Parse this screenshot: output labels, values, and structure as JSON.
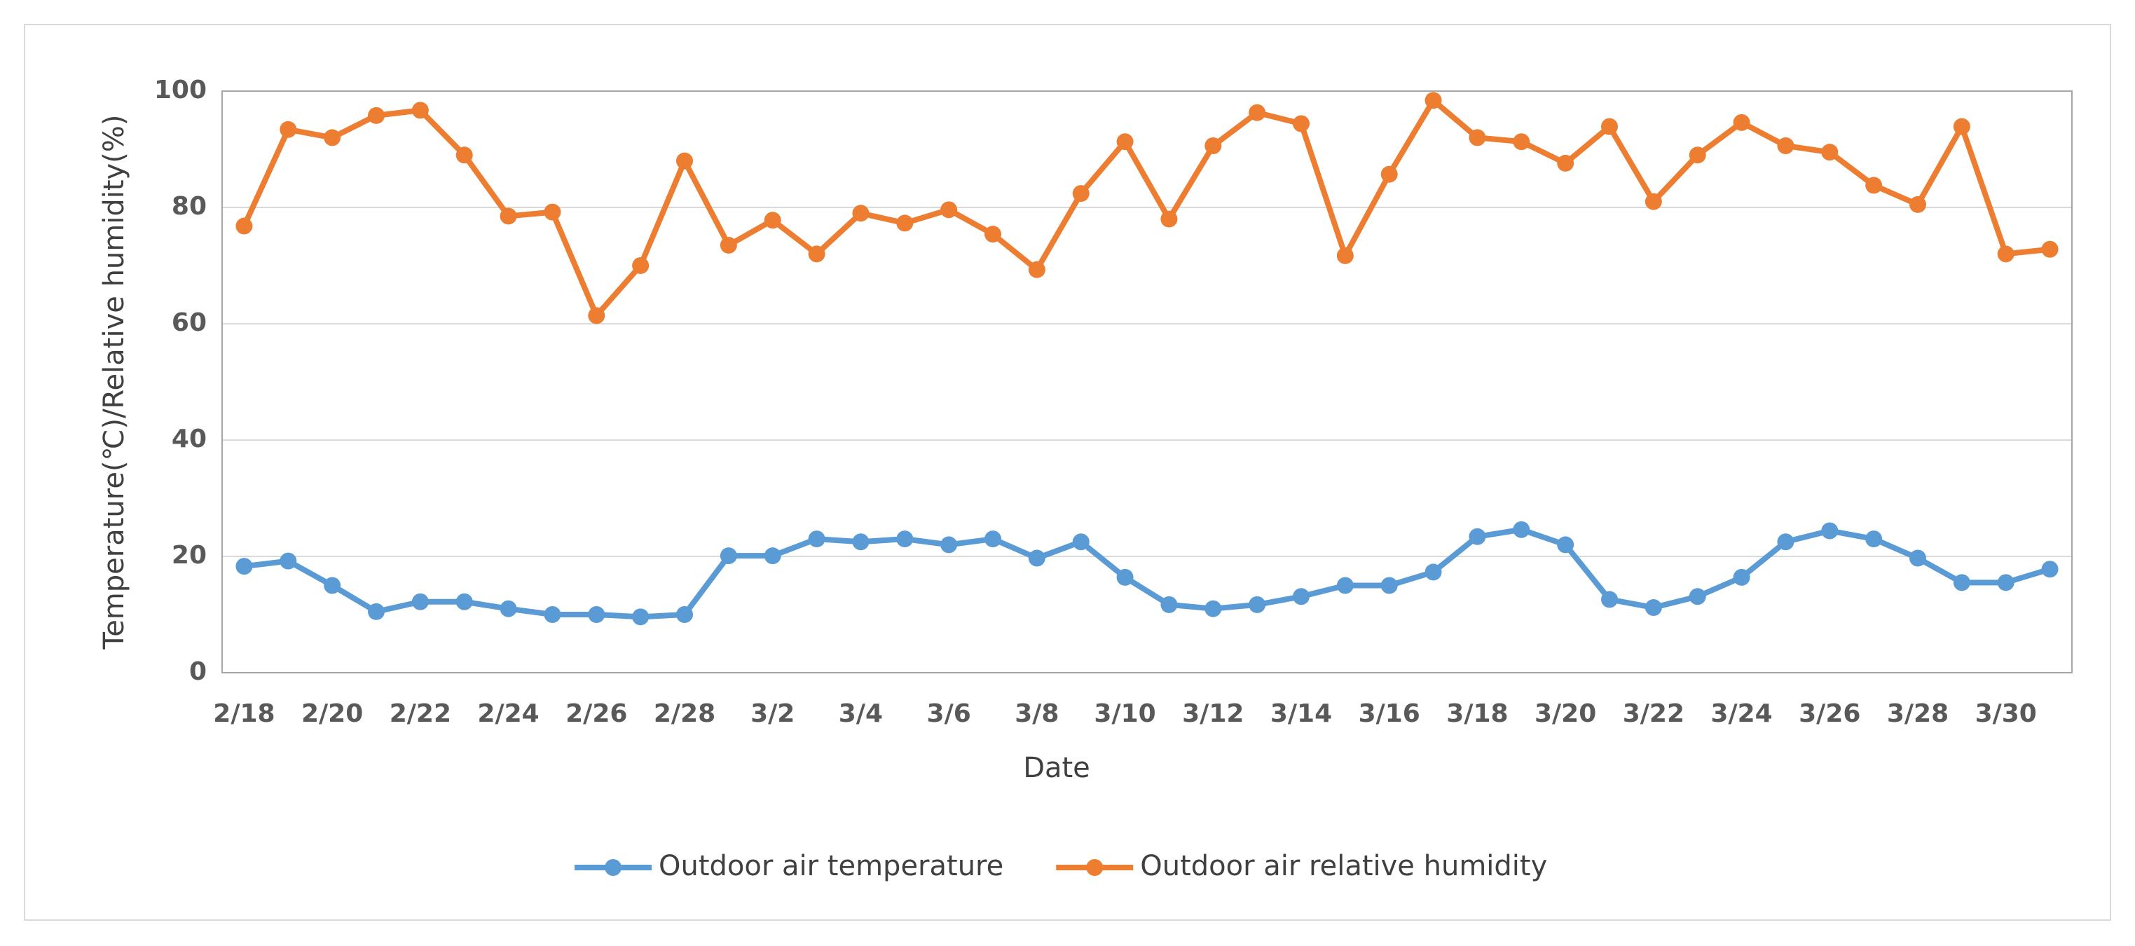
{
  "chart_data": {
    "type": "line",
    "x_label": "Date",
    "y_label": "Temperature(℃)/Relative humidity(%)",
    "categories": [
      "2/18",
      null,
      "2/20",
      null,
      "2/22",
      null,
      "2/24",
      null,
      "2/26",
      null,
      "2/28",
      null,
      "3/2",
      null,
      "3/4",
      null,
      "3/6",
      null,
      "3/8",
      null,
      "3/10",
      null,
      "3/12",
      null,
      "3/14",
      null,
      "3/16",
      null,
      "3/18",
      null,
      "3/20",
      null,
      "3/22",
      null,
      "3/24",
      null,
      "3/26",
      null,
      "3/28",
      null,
      "3/30",
      null
    ],
    "series": [
      {
        "name": "Outdoor air temperature",
        "color": "#5b9bd5",
        "values": [
          18.3,
          19.2,
          15,
          10.5,
          12.2,
          12.2,
          11,
          10,
          10,
          9.6,
          10,
          20.1,
          20.1,
          23,
          22.5,
          23,
          22,
          23,
          19.7,
          22.5,
          16.4,
          11.7,
          11,
          11.7,
          13.1,
          15,
          15,
          17.3,
          23.4,
          24.6,
          22,
          12.6,
          11.2,
          13.1,
          16.4,
          22.5,
          24.4,
          23,
          19.7,
          15.5,
          15.5,
          17.8
        ]
      },
      {
        "name": "Outdoor air relative humidity",
        "color": "#ed7d31",
        "values": [
          76.8,
          93.4,
          92,
          95.8,
          96.7,
          89,
          78.5,
          79.2,
          61.4,
          70,
          88,
          73.5,
          77.8,
          72,
          79,
          77.3,
          79.6,
          75.4,
          69.3,
          82.4,
          91.3,
          78,
          90.6,
          96.3,
          94.4,
          71.7,
          85.7,
          98.4,
          92,
          91.3,
          87.6,
          93.9,
          81,
          89,
          94.6,
          90.6,
          89.5,
          83.8,
          80.5,
          93.9,
          72,
          72.8
        ]
      }
    ],
    "ylim": [
      0,
      100
    ],
    "yticks": [
      0,
      20,
      40,
      60,
      80,
      100
    ],
    "grid": true,
    "legend": "bottom"
  }
}
